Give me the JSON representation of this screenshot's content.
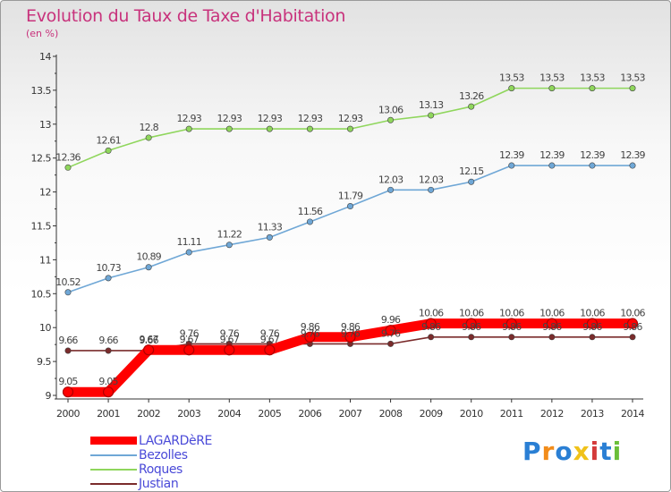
{
  "chart_data": {
    "type": "line",
    "title": "Evolution du Taux de Taxe d'Habitation",
    "subtitle": "(en %)",
    "x": [
      "2000",
      "2001",
      "2002",
      "2003",
      "2004",
      "2005",
      "2006",
      "2007",
      "2008",
      "2009",
      "2010",
      "2011",
      "2012",
      "2013",
      "2014"
    ],
    "yticks": [
      "9",
      "9.5",
      "10",
      "10.5",
      "11",
      "11.5",
      "12",
      "12.5",
      "13",
      "13.5",
      "14"
    ],
    "ylim": [
      9,
      14
    ],
    "grid": false,
    "legend_position": "bottom-left",
    "series": [
      {
        "name": "LAGARDèRE",
        "color": "#ff0000",
        "values": [
          9.05,
          9.05,
          9.67,
          9.67,
          9.67,
          9.67,
          9.86,
          9.86,
          9.96,
          10.06,
          10.06,
          10.06,
          10.06,
          10.06,
          10.06
        ],
        "labels": [
          "9.05",
          "9.05",
          "9.67",
          "9.67",
          "9.67",
          "9.67",
          "9.86",
          "9.86",
          "9.96",
          "10.06",
          "10.06",
          "10.06",
          "10.06",
          "10.06",
          "10.06"
        ]
      },
      {
        "name": "Bezolles",
        "color": "#6fa7d6",
        "values": [
          10.52,
          10.73,
          10.89,
          11.11,
          11.22,
          11.33,
          11.56,
          11.79,
          12.03,
          12.03,
          12.15,
          12.39,
          12.39,
          12.39,
          12.39
        ],
        "labels": [
          "10.52",
          "10.73",
          "10.89",
          "11.11",
          "11.22",
          "11.33",
          "11.56",
          "11.79",
          "12.03",
          "12.03",
          "12.15",
          "12.39",
          "12.39",
          "12.39",
          "12.39"
        ]
      },
      {
        "name": "Roques",
        "color": "#8fd65c",
        "values": [
          12.36,
          12.61,
          12.8,
          12.93,
          12.93,
          12.93,
          12.93,
          12.93,
          13.06,
          13.13,
          13.26,
          13.53,
          13.53,
          13.53,
          13.53
        ],
        "labels": [
          "12.36",
          "12.61",
          "12.8",
          "12.93",
          "12.93",
          "12.93",
          "12.93",
          "12.93",
          "13.06",
          "13.13",
          "13.26",
          "13.53",
          "13.53",
          "13.53",
          "13.53"
        ]
      },
      {
        "name": "Justian",
        "color": "#7a2b2b",
        "values": [
          9.66,
          9.66,
          9.66,
          9.76,
          9.76,
          9.76,
          9.76,
          9.76,
          9.76,
          9.86,
          9.86,
          9.86,
          9.86,
          9.86,
          9.86
        ],
        "labels": [
          "9.66",
          "9.66",
          "9.66",
          "9.76",
          "9.76",
          "9.76",
          "9.76",
          "9.76",
          "9.76",
          "9.86",
          "9.86",
          "9.86",
          "9.86",
          "9.86",
          "9.86"
        ]
      }
    ]
  },
  "logo": {
    "text": "Proxiti",
    "letters": [
      "P",
      "r",
      "o",
      "x",
      "i",
      "t",
      "i"
    ],
    "colors": [
      "#2a7fd4",
      "#f28c1a",
      "#2a7fd4",
      "#f0c21a",
      "#d43a3a",
      "#2a7fd4",
      "#6bbf3a"
    ]
  }
}
